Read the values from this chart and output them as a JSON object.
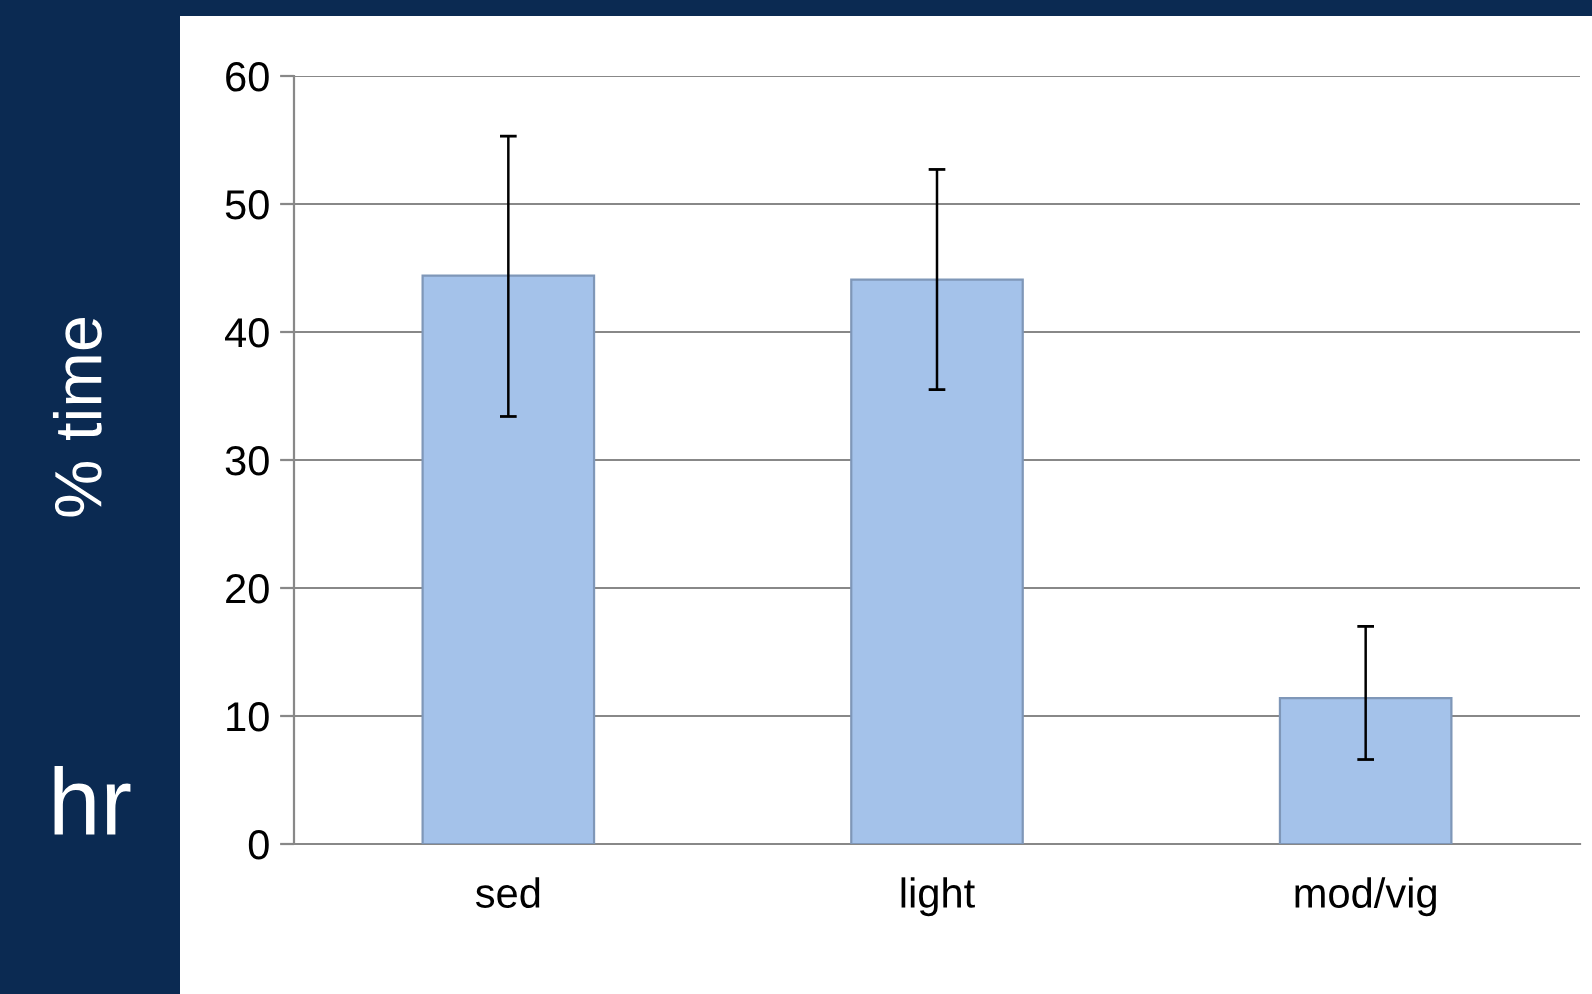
{
  "chart_data": {
    "type": "bar",
    "ylabel": "% time",
    "annotations": [
      "hr"
    ],
    "categories": [
      "sed",
      "light",
      "mod/vig"
    ],
    "values": [
      44.4,
      44.1,
      11.4
    ],
    "errors": [
      [
        33.4,
        55.3
      ],
      [
        35.5,
        52.7
      ],
      [
        6.6,
        17.0
      ]
    ],
    "color": "#a4c2ea",
    "ylim": [
      0,
      60
    ],
    "yticks": [
      0,
      10,
      20,
      30,
      40,
      50,
      60
    ],
    "grid": "y"
  }
}
